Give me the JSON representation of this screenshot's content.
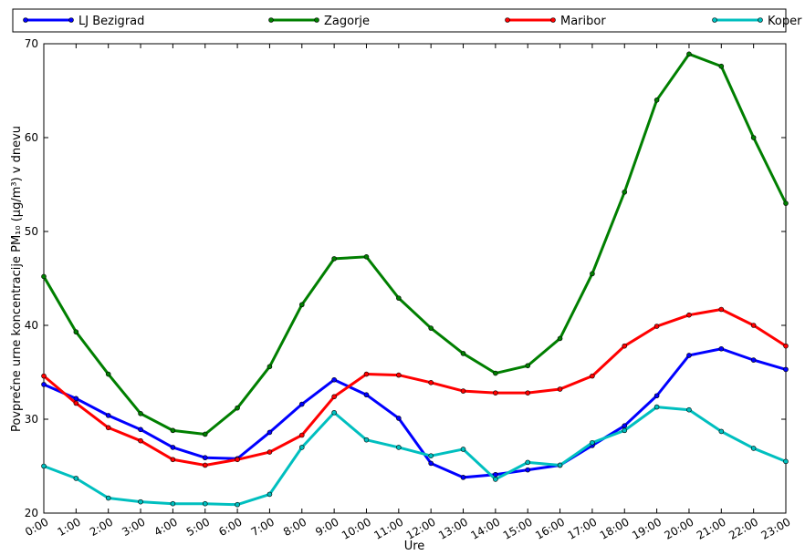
{
  "chart_data": {
    "type": "line",
    "x_label": "Ure",
    "y_label": "Povprečne urne koncentracije PM₁₀ (μg/m³) v dnevu",
    "categories": [
      "0:00",
      "1:00",
      "2:00",
      "3:00",
      "4:00",
      "5:00",
      "6:00",
      "7:00",
      "8:00",
      "9:00",
      "10:00",
      "11:00",
      "12:00",
      "13:00",
      "14:00",
      "15:00",
      "16:00",
      "17:00",
      "18:00",
      "19:00",
      "20:00",
      "21:00",
      "22:00",
      "23:00"
    ],
    "series": [
      {
        "name": "LJ Bezigrad",
        "color": "#0000ff",
        "values": [
          33.7,
          32.2,
          30.4,
          28.9,
          27.0,
          25.9,
          25.8,
          28.6,
          31.6,
          34.2,
          32.6,
          30.1,
          25.3,
          23.8,
          24.1,
          24.6,
          25.1,
          27.2,
          29.3,
          32.5,
          36.8,
          37.5,
          36.3,
          35.3
        ]
      },
      {
        "name": "Zagorje",
        "color": "#007f00",
        "values": [
          45.2,
          39.3,
          34.8,
          30.6,
          28.8,
          28.4,
          31.2,
          35.6,
          42.2,
          47.1,
          47.3,
          42.9,
          39.7,
          37.0,
          34.9,
          35.7,
          38.6,
          45.5,
          54.2,
          64.0,
          68.9,
          67.6,
          60.0,
          53.0
        ]
      },
      {
        "name": "Maribor",
        "color": "#ff0000",
        "values": [
          34.6,
          31.7,
          29.1,
          27.7,
          25.7,
          25.1,
          25.7,
          26.5,
          28.3,
          32.4,
          34.8,
          34.7,
          33.9,
          33.0,
          32.8,
          32.8,
          33.2,
          34.6,
          37.8,
          39.9,
          41.1,
          41.7,
          40.0,
          37.8
        ]
      },
      {
        "name": "Koper",
        "color": "#00bfbf",
        "values": [
          25.0,
          23.7,
          21.6,
          21.2,
          21.0,
          21.0,
          20.9,
          22.0,
          27.0,
          30.7,
          27.8,
          27.0,
          26.1,
          26.8,
          23.6,
          25.4,
          25.1,
          27.5,
          28.8,
          31.3,
          31.0,
          28.7,
          26.9,
          25.5
        ]
      }
    ],
    "ylim": [
      20,
      70
    ],
    "yticks": [
      20,
      30,
      40,
      50,
      60,
      70
    ],
    "legend": "top"
  }
}
